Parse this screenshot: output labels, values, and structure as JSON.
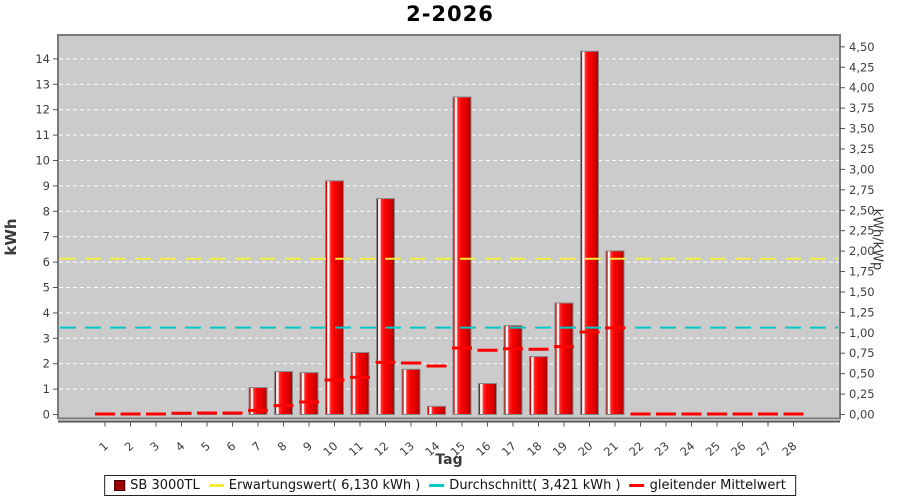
{
  "title": "2-2026",
  "chart_data": {
    "type": "bar",
    "title": "2-2026",
    "xlabel": "Tag",
    "ylabel_left": "kWh",
    "ylabel_right": "kWh/kWp",
    "grid": true,
    "legend_position": "bottom",
    "categories": [
      1,
      2,
      3,
      4,
      5,
      6,
      7,
      8,
      9,
      10,
      11,
      12,
      13,
      14,
      15,
      16,
      17,
      18,
      19,
      20,
      21,
      22,
      23,
      24,
      25,
      26,
      27,
      28
    ],
    "series": [
      {
        "name": "SB 3000TL",
        "type": "bar",
        "color": "#dd0000",
        "values": [
          0.02,
          0.02,
          0.02,
          0.07,
          0.07,
          0.07,
          1.06,
          1.69,
          1.65,
          9.2,
          2.44,
          8.5,
          1.78,
          0.32,
          12.5,
          1.22,
          3.5,
          2.28,
          4.39,
          14.3,
          6.44,
          0,
          0,
          0,
          0,
          0,
          0,
          0
        ]
      },
      {
        "name": "Erwartungswert( 6,130 kWh )",
        "type": "hline",
        "color": "#f2ee3e",
        "value": 6.13
      },
      {
        "name": "Durchschnitt( 3,421 kWh )",
        "type": "hline",
        "color": "#00c8c8",
        "value": 3.421
      },
      {
        "name": "gleitender Mittelwert",
        "type": "dash-line",
        "color": "#ff0000",
        "values": [
          0.02,
          0.02,
          0.02,
          0.05,
          0.06,
          0.06,
          0.16,
          0.35,
          0.49,
          1.36,
          1.46,
          2.05,
          2.03,
          1.91,
          2.62,
          2.53,
          2.59,
          2.57,
          2.67,
          3.25,
          3.41,
          0.02,
          0.02,
          0.02,
          0.02,
          0.02,
          0.02,
          0.02
        ]
      }
    ],
    "left_axis": {
      "ticks": [
        0,
        1,
        2,
        3,
        4,
        5,
        6,
        7,
        8,
        9,
        10,
        11,
        12,
        13,
        14
      ],
      "range": [
        0,
        14.95
      ]
    },
    "right_axis": {
      "tick_labels": [
        "0,00",
        "0,25",
        "0,50",
        "0,75",
        "1,00",
        "1,25",
        "1,50",
        "1,75",
        "2,00",
        "2,25",
        "2,50",
        "2,75",
        "3,00",
        "3,25",
        "3,50",
        "3,75",
        "4,00",
        "4,25",
        "4,50"
      ],
      "tick_step": 0.25,
      "range": [
        0,
        4.65
      ]
    }
  },
  "legend": {
    "items": [
      {
        "label": "SB 3000TL",
        "marker": "square",
        "color": "#a00000"
      },
      {
        "label": "Erwartungswert( 6,130 kWh )",
        "marker": "line",
        "color": "#f2ee3e"
      },
      {
        "label": "Durchschnitt( 3,421 kWh )",
        "marker": "line",
        "color": "#00c8c8"
      },
      {
        "label": "gleitender Mittelwert",
        "marker": "line",
        "color": "#ff0000"
      }
    ]
  },
  "colors": {
    "plot_bg": "#cbcbcb",
    "gridline": "#ffffff",
    "bar_red": "#dd0000",
    "expected_yellow": "#f2ee3e",
    "average_cyan": "#00c8c8",
    "moving_avg_red": "#ff0000",
    "axis_text": "#3d3d3d"
  }
}
